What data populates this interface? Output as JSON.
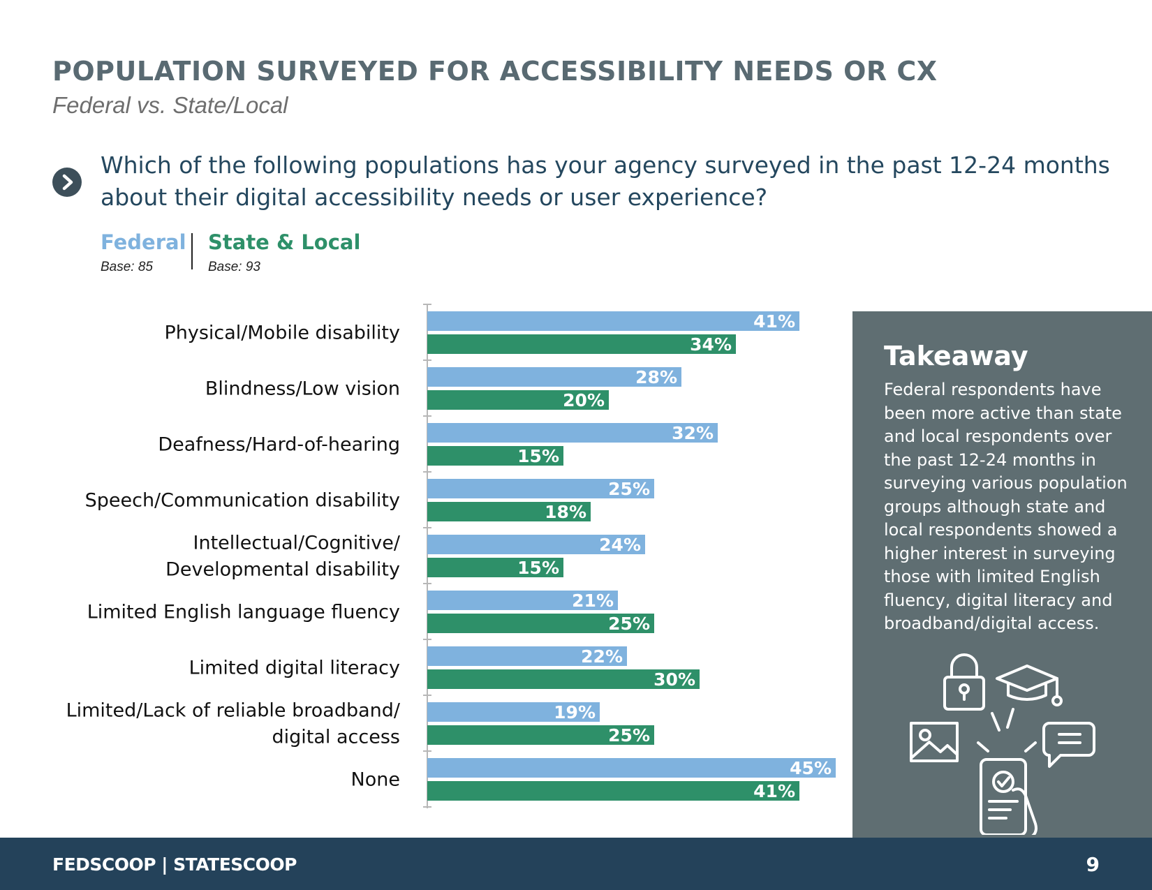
{
  "page": {
    "title": "POPULATION SURVEYED FOR ACCESSIBILITY NEEDS OR CX",
    "subtitle": "Federal vs. State/Local",
    "question": "Which of the following populations has your agency surveyed in the past 12-24 months about their digital accessibility needs or user experience?",
    "question_icon": "chevron-right-icon"
  },
  "legend": {
    "federal": {
      "label": "Federal",
      "base": "Base: 85",
      "color": "#7fb2de"
    },
    "state_local": {
      "label": "State & Local",
      "base": "Base: 93",
      "color": "#2e9069"
    }
  },
  "chart_data": {
    "type": "bar",
    "orientation": "horizontal",
    "categories": [
      [
        "Physical/Mobile disability"
      ],
      [
        "Blindness/Low vision"
      ],
      [
        "Deafness/Hard-of-hearing"
      ],
      [
        "Speech/Communication disability"
      ],
      [
        "Intellectual/Cognitive/",
        "Developmental disability"
      ],
      [
        "Limited English language fluency"
      ],
      [
        "Limited digital literacy"
      ],
      [
        "Limited/Lack of reliable broadband/",
        "digital access"
      ],
      [
        "None"
      ]
    ],
    "series": [
      {
        "name": "Federal",
        "color": "#7fb2de",
        "values": [
          41,
          28,
          32,
          25,
          24,
          21,
          22,
          19,
          45
        ]
      },
      {
        "name": "State & Local",
        "color": "#2e9069",
        "values": [
          34,
          20,
          15,
          18,
          15,
          25,
          30,
          25,
          41
        ]
      }
    ],
    "value_suffix": "%",
    "xlim": [
      0,
      45
    ]
  },
  "takeaway": {
    "title": "Takeaway",
    "body": "Federal respondents have been more active than state and local respondents over the past 12-24 months in surveying various population groups although state and local respondents showed a higher interest in surveying those with limited English fluency, digital literacy and broadband/digital access.",
    "icons": [
      "lock-icon",
      "graduation-cap-icon",
      "image-icon",
      "chat-icon",
      "phone-checkmark-icon"
    ]
  },
  "footer": {
    "brand": "FEDSCOOP | STATESCOOP",
    "page_number": "9"
  }
}
